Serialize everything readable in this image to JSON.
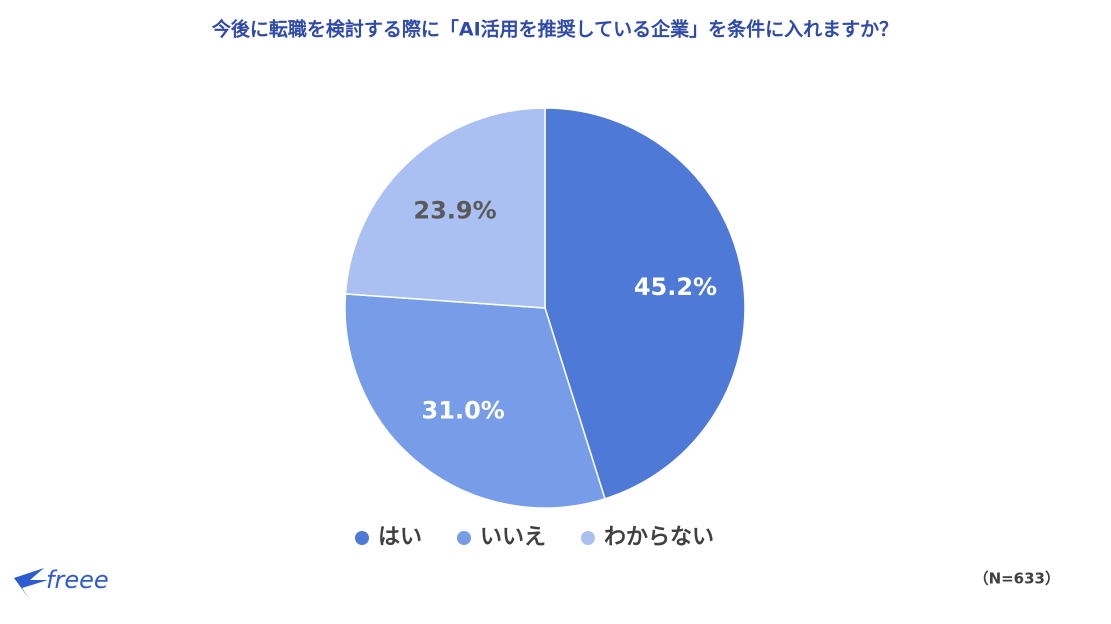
{
  "chart_data": {
    "type": "pie",
    "title": "今後に転職を検討する際に「AI活用を推奨している企業」を条件に入れますか？",
    "categories": [
      "はい",
      "いいえ",
      "わからない"
    ],
    "values": [
      45.2,
      31.0,
      23.9
    ],
    "value_labels": [
      "45.2%",
      "31.0%",
      "23.9%"
    ],
    "colors": [
      "#4e79d6",
      "#789de8",
      "#abc0f2"
    ],
    "note": "（N=633）",
    "logo": "freee"
  }
}
